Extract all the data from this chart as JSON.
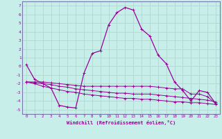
{
  "xlabel": "Windchill (Refroidissement éolien,°C)",
  "background_color": "#c8eeea",
  "grid_color": "#b0d8d0",
  "line_color": "#990099",
  "spine_color": "#7777aa",
  "x_ticks": [
    0,
    1,
    2,
    3,
    4,
    5,
    6,
    7,
    8,
    9,
    10,
    11,
    12,
    13,
    14,
    15,
    16,
    17,
    18,
    19,
    20,
    21,
    22,
    23
  ],
  "y_ticks": [
    -5,
    -4,
    -3,
    -2,
    -1,
    0,
    1,
    2,
    3,
    4,
    5,
    6,
    7
  ],
  "ylim": [
    -5.5,
    7.5
  ],
  "xlim": [
    -0.5,
    23.5
  ],
  "series": [
    [
      0.2,
      -1.5,
      -2.0,
      -2.5,
      -4.5,
      -4.7,
      -4.8,
      -0.8,
      1.5,
      1.8,
      4.8,
      6.2,
      6.8,
      6.5,
      4.3,
      3.5,
      1.3,
      0.3,
      -1.8,
      -2.8,
      -4.0,
      -2.8,
      -3.0,
      -4.3
    ],
    [
      -1.8,
      -1.8,
      -1.8,
      -1.9,
      -2.0,
      -2.1,
      -2.2,
      -2.3,
      -2.3,
      -2.3,
      -2.3,
      -2.3,
      -2.3,
      -2.3,
      -2.3,
      -2.3,
      -2.4,
      -2.5,
      -2.6,
      -2.6,
      -3.2,
      -3.2,
      -3.5,
      -4.3
    ],
    [
      -1.8,
      -1.9,
      -2.0,
      -2.1,
      -2.3,
      -2.4,
      -2.6,
      -2.7,
      -2.8,
      -2.9,
      -3.0,
      -3.1,
      -3.1,
      -3.2,
      -3.2,
      -3.2,
      -3.3,
      -3.4,
      -3.5,
      -3.6,
      -3.7,
      -3.8,
      -3.9,
      -4.1
    ],
    [
      -1.8,
      -2.0,
      -2.3,
      -2.5,
      -2.7,
      -2.9,
      -3.0,
      -3.2,
      -3.3,
      -3.4,
      -3.5,
      -3.6,
      -3.7,
      -3.7,
      -3.8,
      -3.8,
      -3.9,
      -4.0,
      -4.1,
      -4.1,
      -4.2,
      -4.2,
      -4.3,
      -4.4
    ]
  ]
}
